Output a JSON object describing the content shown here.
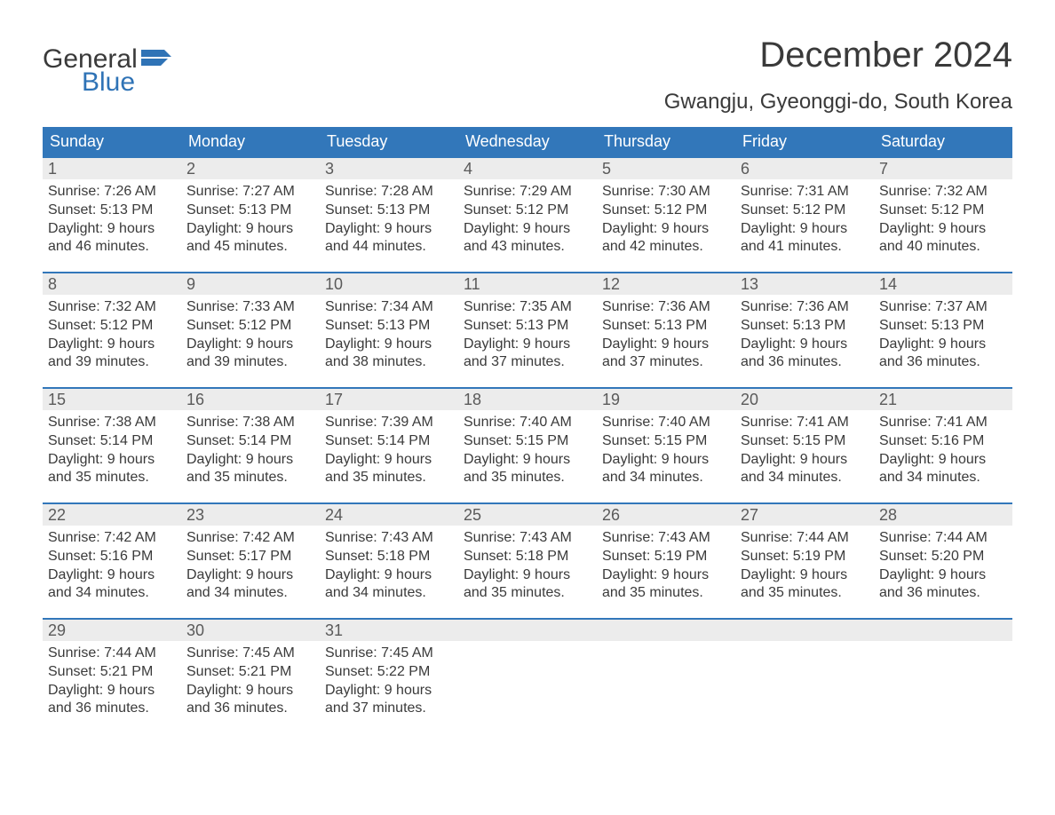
{
  "logo": {
    "word1": "General",
    "word2": "Blue",
    "color_text": "#3a3a3a",
    "color_blue": "#2f73b6"
  },
  "header": {
    "title": "December 2024",
    "location": "Gwangju, Gyeonggi-do, South Korea"
  },
  "colors": {
    "header_bg": "#3277ba",
    "header_fg": "#ffffff",
    "daynum_bg": "#ececec",
    "week_divider": "#3277ba",
    "text": "#3a3a3a"
  },
  "calendar": {
    "weekdays": [
      "Sunday",
      "Monday",
      "Tuesday",
      "Wednesday",
      "Thursday",
      "Friday",
      "Saturday"
    ],
    "weeks": [
      [
        {
          "n": "1",
          "sunrise": "Sunrise: 7:26 AM",
          "sunset": "Sunset: 5:13 PM",
          "d1": "Daylight: 9 hours",
          "d2": "and 46 minutes."
        },
        {
          "n": "2",
          "sunrise": "Sunrise: 7:27 AM",
          "sunset": "Sunset: 5:13 PM",
          "d1": "Daylight: 9 hours",
          "d2": "and 45 minutes."
        },
        {
          "n": "3",
          "sunrise": "Sunrise: 7:28 AM",
          "sunset": "Sunset: 5:13 PM",
          "d1": "Daylight: 9 hours",
          "d2": "and 44 minutes."
        },
        {
          "n": "4",
          "sunrise": "Sunrise: 7:29 AM",
          "sunset": "Sunset: 5:12 PM",
          "d1": "Daylight: 9 hours",
          "d2": "and 43 minutes."
        },
        {
          "n": "5",
          "sunrise": "Sunrise: 7:30 AM",
          "sunset": "Sunset: 5:12 PM",
          "d1": "Daylight: 9 hours",
          "d2": "and 42 minutes."
        },
        {
          "n": "6",
          "sunrise": "Sunrise: 7:31 AM",
          "sunset": "Sunset: 5:12 PM",
          "d1": "Daylight: 9 hours",
          "d2": "and 41 minutes."
        },
        {
          "n": "7",
          "sunrise": "Sunrise: 7:32 AM",
          "sunset": "Sunset: 5:12 PM",
          "d1": "Daylight: 9 hours",
          "d2": "and 40 minutes."
        }
      ],
      [
        {
          "n": "8",
          "sunrise": "Sunrise: 7:32 AM",
          "sunset": "Sunset: 5:12 PM",
          "d1": "Daylight: 9 hours",
          "d2": "and 39 minutes."
        },
        {
          "n": "9",
          "sunrise": "Sunrise: 7:33 AM",
          "sunset": "Sunset: 5:12 PM",
          "d1": "Daylight: 9 hours",
          "d2": "and 39 minutes."
        },
        {
          "n": "10",
          "sunrise": "Sunrise: 7:34 AM",
          "sunset": "Sunset: 5:13 PM",
          "d1": "Daylight: 9 hours",
          "d2": "and 38 minutes."
        },
        {
          "n": "11",
          "sunrise": "Sunrise: 7:35 AM",
          "sunset": "Sunset: 5:13 PM",
          "d1": "Daylight: 9 hours",
          "d2": "and 37 minutes."
        },
        {
          "n": "12",
          "sunrise": "Sunrise: 7:36 AM",
          "sunset": "Sunset: 5:13 PM",
          "d1": "Daylight: 9 hours",
          "d2": "and 37 minutes."
        },
        {
          "n": "13",
          "sunrise": "Sunrise: 7:36 AM",
          "sunset": "Sunset: 5:13 PM",
          "d1": "Daylight: 9 hours",
          "d2": "and 36 minutes."
        },
        {
          "n": "14",
          "sunrise": "Sunrise: 7:37 AM",
          "sunset": "Sunset: 5:13 PM",
          "d1": "Daylight: 9 hours",
          "d2": "and 36 minutes."
        }
      ],
      [
        {
          "n": "15",
          "sunrise": "Sunrise: 7:38 AM",
          "sunset": "Sunset: 5:14 PM",
          "d1": "Daylight: 9 hours",
          "d2": "and 35 minutes."
        },
        {
          "n": "16",
          "sunrise": "Sunrise: 7:38 AM",
          "sunset": "Sunset: 5:14 PM",
          "d1": "Daylight: 9 hours",
          "d2": "and 35 minutes."
        },
        {
          "n": "17",
          "sunrise": "Sunrise: 7:39 AM",
          "sunset": "Sunset: 5:14 PM",
          "d1": "Daylight: 9 hours",
          "d2": "and 35 minutes."
        },
        {
          "n": "18",
          "sunrise": "Sunrise: 7:40 AM",
          "sunset": "Sunset: 5:15 PM",
          "d1": "Daylight: 9 hours",
          "d2": "and 35 minutes."
        },
        {
          "n": "19",
          "sunrise": "Sunrise: 7:40 AM",
          "sunset": "Sunset: 5:15 PM",
          "d1": "Daylight: 9 hours",
          "d2": "and 34 minutes."
        },
        {
          "n": "20",
          "sunrise": "Sunrise: 7:41 AM",
          "sunset": "Sunset: 5:15 PM",
          "d1": "Daylight: 9 hours",
          "d2": "and 34 minutes."
        },
        {
          "n": "21",
          "sunrise": "Sunrise: 7:41 AM",
          "sunset": "Sunset: 5:16 PM",
          "d1": "Daylight: 9 hours",
          "d2": "and 34 minutes."
        }
      ],
      [
        {
          "n": "22",
          "sunrise": "Sunrise: 7:42 AM",
          "sunset": "Sunset: 5:16 PM",
          "d1": "Daylight: 9 hours",
          "d2": "and 34 minutes."
        },
        {
          "n": "23",
          "sunrise": "Sunrise: 7:42 AM",
          "sunset": "Sunset: 5:17 PM",
          "d1": "Daylight: 9 hours",
          "d2": "and 34 minutes."
        },
        {
          "n": "24",
          "sunrise": "Sunrise: 7:43 AM",
          "sunset": "Sunset: 5:18 PM",
          "d1": "Daylight: 9 hours",
          "d2": "and 34 minutes."
        },
        {
          "n": "25",
          "sunrise": "Sunrise: 7:43 AM",
          "sunset": "Sunset: 5:18 PM",
          "d1": "Daylight: 9 hours",
          "d2": "and 35 minutes."
        },
        {
          "n": "26",
          "sunrise": "Sunrise: 7:43 AM",
          "sunset": "Sunset: 5:19 PM",
          "d1": "Daylight: 9 hours",
          "d2": "and 35 minutes."
        },
        {
          "n": "27",
          "sunrise": "Sunrise: 7:44 AM",
          "sunset": "Sunset: 5:19 PM",
          "d1": "Daylight: 9 hours",
          "d2": "and 35 minutes."
        },
        {
          "n": "28",
          "sunrise": "Sunrise: 7:44 AM",
          "sunset": "Sunset: 5:20 PM",
          "d1": "Daylight: 9 hours",
          "d2": "and 36 minutes."
        }
      ],
      [
        {
          "n": "29",
          "sunrise": "Sunrise: 7:44 AM",
          "sunset": "Sunset: 5:21 PM",
          "d1": "Daylight: 9 hours",
          "d2": "and 36 minutes."
        },
        {
          "n": "30",
          "sunrise": "Sunrise: 7:45 AM",
          "sunset": "Sunset: 5:21 PM",
          "d1": "Daylight: 9 hours",
          "d2": "and 36 minutes."
        },
        {
          "n": "31",
          "sunrise": "Sunrise: 7:45 AM",
          "sunset": "Sunset: 5:22 PM",
          "d1": "Daylight: 9 hours",
          "d2": "and 37 minutes."
        },
        {
          "n": ""
        },
        {
          "n": ""
        },
        {
          "n": ""
        },
        {
          "n": ""
        }
      ]
    ]
  }
}
